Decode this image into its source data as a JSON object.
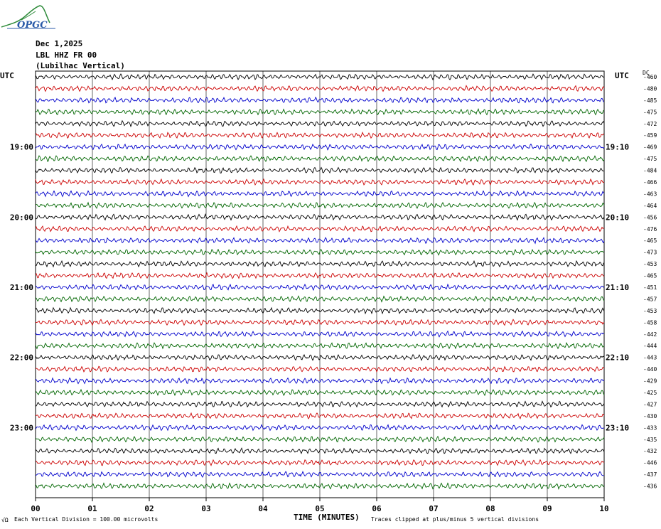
{
  "logo": {
    "text": "OPGC"
  },
  "header": {
    "date": "Dec 1,2025",
    "station": "LBL HHZ FR 00",
    "location": "(Lubilhac Vertical)"
  },
  "left_axis_title": "UTC",
  "right_axis_title": "UTC",
  "dc_title": "DC",
  "chart_data": {
    "type": "line",
    "title": "LBL HHZ FR 00",
    "xlabel": "TIME (MINUTES)",
    "x_ticks": [
      "00",
      "01",
      "02",
      "03",
      "04",
      "05",
      "06",
      "07",
      "08",
      "09",
      "10"
    ],
    "xlim": [
      0,
      10
    ],
    "grid": true,
    "trace_colors": [
      "#000000",
      "#cc0000",
      "#0000cc",
      "#006600"
    ],
    "left_hour_labels": [
      {
        "trace": 6,
        "label": "19:00"
      },
      {
        "trace": 12,
        "label": "20:00"
      },
      {
        "trace": 18,
        "label": "21:00"
      },
      {
        "trace": 24,
        "label": "22:00"
      },
      {
        "trace": 30,
        "label": "23:00"
      }
    ],
    "right_hour_labels": [
      {
        "trace": 6,
        "label": "19:10"
      },
      {
        "trace": 12,
        "label": "20:10"
      },
      {
        "trace": 18,
        "label": "21:10"
      },
      {
        "trace": 24,
        "label": "22:10"
      },
      {
        "trace": 30,
        "label": "23:10"
      }
    ],
    "dc_offsets": [
      -460,
      -480,
      -485,
      -475,
      -472,
      -459,
      -469,
      -475,
      -484,
      -466,
      -463,
      -464,
      -456,
      -476,
      -465,
      -473,
      -453,
      -465,
      -451,
      -457,
      -453,
      -458,
      -442,
      -444,
      -443,
      -440,
      -429,
      -425,
      -427,
      -430,
      -433,
      -435,
      -432,
      -446,
      -437,
      -436
    ]
  },
  "footer": {
    "left_mark": "√Ω",
    "scale_note": "Each Vertical Division =  100.00 microvolts",
    "clip_note": "Traces clipped at plus/minus 5 vertical divisions"
  }
}
